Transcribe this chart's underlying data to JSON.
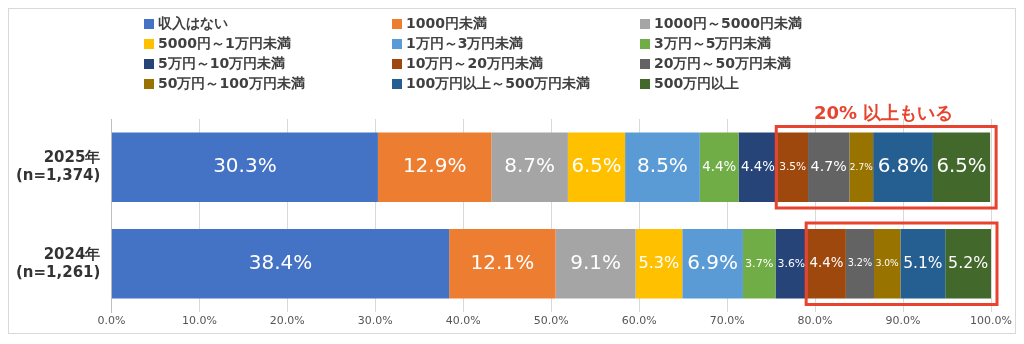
{
  "chart_data": {
    "type": "bar",
    "orientation": "horizontal",
    "stacked": true,
    "categories": [
      "2025年\n(n=1,374)",
      "2024年\n(n=1,261)"
    ],
    "series": [
      {
        "name": "収入はない",
        "color": "#4472c4",
        "values": [
          30.3,
          38.4
        ],
        "value_labels": [
          "30.3%",
          "38.4%"
        ]
      },
      {
        "name": "1000円未満",
        "color": "#ed7d31",
        "values": [
          12.9,
          12.1
        ],
        "value_labels": [
          "12.9%",
          "12.1%"
        ]
      },
      {
        "name": "1000円～5000円未満",
        "color": "#a5a5a5",
        "values": [
          8.7,
          9.1
        ],
        "value_labels": [
          "8.7%",
          "9.1%"
        ]
      },
      {
        "name": "5000円～1万円未満",
        "color": "#ffc000",
        "values": [
          6.5,
          5.3
        ],
        "value_labels": [
          "6.5%",
          "5.3%"
        ]
      },
      {
        "name": "1万円～3万円未満",
        "color": "#5b9bd5",
        "values": [
          8.5,
          6.9
        ],
        "value_labels": [
          "8.5%",
          "6.9%"
        ]
      },
      {
        "name": "3万円～5万円未満",
        "color": "#70ad47",
        "values": [
          4.4,
          3.7
        ],
        "value_labels": [
          "4.4%",
          "3.7%"
        ]
      },
      {
        "name": "5万円～10万円未満",
        "color": "#264478",
        "values": [
          4.4,
          3.6
        ],
        "value_labels": [
          "4.4%",
          "3.6%"
        ]
      },
      {
        "name": "10万円～20万円未満",
        "color": "#9e480e",
        "values": [
          3.5,
          4.4
        ],
        "value_labels": [
          "3.5%",
          "4.4%"
        ]
      },
      {
        "name": "20万円～50万円未満",
        "color": "#636363",
        "values": [
          4.7,
          3.2
        ],
        "value_labels": [
          "4.7%",
          "3.2%"
        ]
      },
      {
        "name": "50万円～100万円未満",
        "color": "#997300",
        "values": [
          2.7,
          3.0
        ],
        "value_labels": [
          "2.7%",
          "3.0%"
        ]
      },
      {
        "name": "100万円以上～500万円未満",
        "color": "#255e91",
        "values": [
          6.8,
          5.1
        ],
        "value_labels": [
          "6.8%",
          "5.1%"
        ]
      },
      {
        "name": "500万円以上",
        "color": "#43682b",
        "values": [
          6.5,
          5.2
        ],
        "value_labels": [
          "6.5%",
          "5.2%"
        ]
      }
    ],
    "xlim": [
      0,
      100
    ],
    "xticks": [
      {
        "value": 0,
        "label": "0.0%"
      },
      {
        "value": 10,
        "label": "10.0%"
      },
      {
        "value": 20,
        "label": "20.0%"
      },
      {
        "value": 30,
        "label": "30.0%"
      },
      {
        "value": 40,
        "label": "40.0%"
      },
      {
        "value": 50,
        "label": "50.0%"
      },
      {
        "value": 60,
        "label": "60.0%"
      },
      {
        "value": 70,
        "label": "70.0%"
      },
      {
        "value": 80,
        "label": "80.0%"
      },
      {
        "value": 90,
        "label": "90.0%"
      },
      {
        "value": 100,
        "label": "100.0%"
      }
    ],
    "grid": "x",
    "legend": "top",
    "annotations": [
      "20% 以上もいる"
    ]
  }
}
